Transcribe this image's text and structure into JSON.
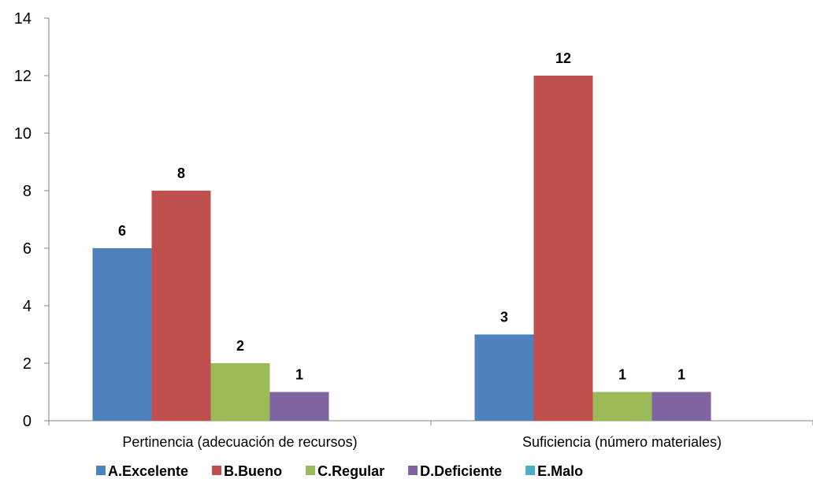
{
  "chart_data": {
    "type": "bar",
    "categories": [
      "Pertinencia (adecuación de recursos)",
      "Suficiencia (número materiales)"
    ],
    "series": [
      {
        "name": "A.Excelente",
        "values": [
          6,
          3
        ],
        "color": "#4F81BD"
      },
      {
        "name": "B.Bueno",
        "values": [
          8,
          12
        ],
        "color": "#C0504D"
      },
      {
        "name": "C.Regular",
        "values": [
          2,
          1
        ],
        "color": "#9BBB59"
      },
      {
        "name": "D.Deficiente",
        "values": [
          1,
          1
        ],
        "color": "#8064A2"
      },
      {
        "name": "E.Malo",
        "values": [
          0,
          0
        ],
        "color": "#4BACC6"
      }
    ],
    "ylim": [
      0,
      14
    ],
    "yticks": [
      0,
      2,
      4,
      6,
      8,
      10,
      12,
      14
    ],
    "grid": false,
    "legend": "bottom",
    "data_labels_hidden_for_zero": true
  }
}
